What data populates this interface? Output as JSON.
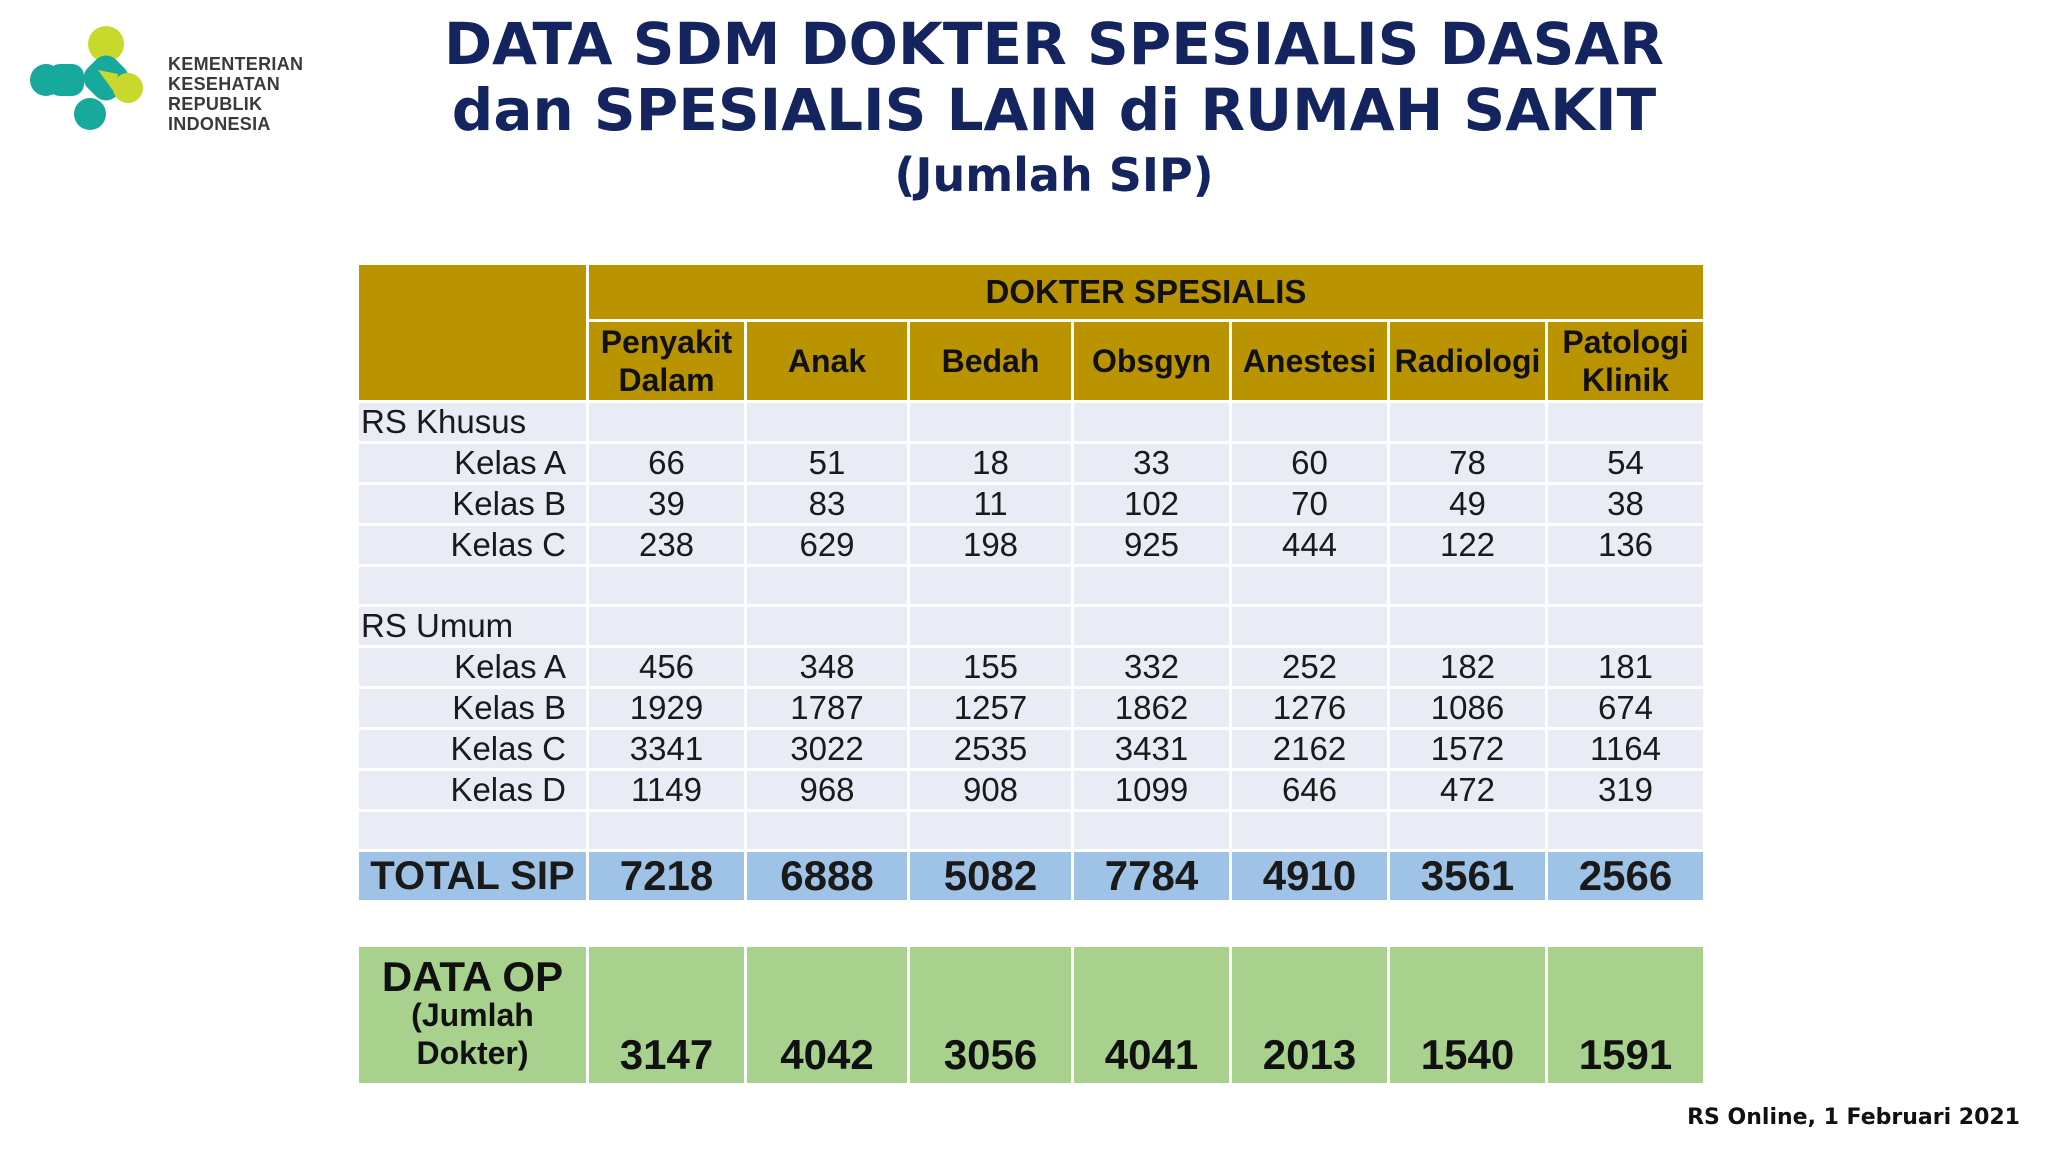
{
  "logo": {
    "lines": [
      "KEMENTERIAN",
      "KESEHATAN",
      "REPUBLIK",
      "INDONESIA"
    ],
    "colors": {
      "teal": "#17a99b",
      "lime": "#c9d82c"
    }
  },
  "title": {
    "line1": "DATA SDM DOKTER SPESIALIS DASAR",
    "line2": "dan SPESIALIS LAIN di RUMAH SAKIT",
    "line3": "(Jumlah SIP)"
  },
  "table": {
    "group_header": "DOKTER SPESIALIS",
    "columns": [
      [
        "Penyakit",
        "Dalam"
      ],
      [
        "Anak"
      ],
      [
        "Bedah"
      ],
      [
        "Obsgyn"
      ],
      [
        "Anestesi"
      ],
      [
        "Radiologi"
      ],
      [
        "Patologi",
        "Klinik"
      ]
    ],
    "rs_khusus": {
      "label": "RS Khusus",
      "rows": [
        {
          "label": "Kelas A",
          "values": [
            "66",
            "51",
            "18",
            "33",
            "60",
            "78",
            "54"
          ]
        },
        {
          "label": "Kelas B",
          "values": [
            "39",
            "83",
            "11",
            "102",
            "70",
            "49",
            "38"
          ]
        },
        {
          "label": "Kelas C",
          "values": [
            "238",
            "629",
            "198",
            "925",
            "444",
            "122",
            "136"
          ]
        }
      ]
    },
    "rs_umum": {
      "label": "RS Umum",
      "rows": [
        {
          "label": "Kelas A",
          "values": [
            "456",
            "348",
            "155",
            "332",
            "252",
            "182",
            "181"
          ]
        },
        {
          "label": "Kelas B",
          "values": [
            "1929",
            "1787",
            "1257",
            "1862",
            "1276",
            "1086",
            "674"
          ]
        },
        {
          "label": "Kelas C",
          "values": [
            "3341",
            "3022",
            "2535",
            "3431",
            "2162",
            "1572",
            "1164"
          ]
        },
        {
          "label": "Kelas D",
          "values": [
            "1149",
            "968",
            "908",
            "1099",
            "646",
            "472",
            "319"
          ]
        }
      ]
    },
    "total": {
      "label": "TOTAL SIP",
      "values": [
        "7218",
        "6888",
        "5082",
        "7784",
        "4910",
        "3561",
        "2566"
      ]
    }
  },
  "data_op": {
    "label_line1": "DATA OP",
    "label_line2": "(Jumlah",
    "label_line3": "Dokter)",
    "values": [
      "3147",
      "4042",
      "3056",
      "4041",
      "2013",
      "1540",
      "1591"
    ]
  },
  "source": "RS Online, 1 Februari 2021",
  "colors": {
    "title": "#13245e",
    "header": "#b99400",
    "row": "#e9ecf4",
    "total": "#9fc3e6",
    "op": "#a9d18e"
  }
}
